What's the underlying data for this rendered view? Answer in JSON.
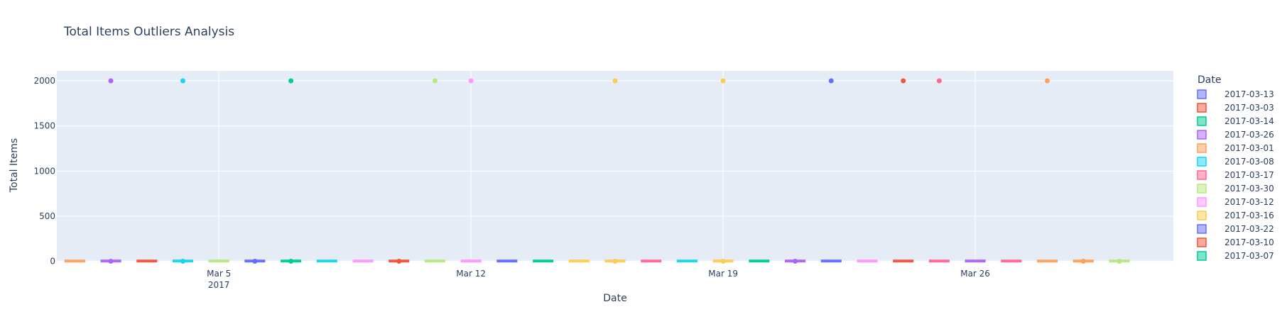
{
  "chart_data": {
    "type": "box",
    "title": "Total Items Outliers Analysis",
    "xlabel": "Date",
    "ylabel": "Total Items",
    "ylim": [
      -10,
      2110
    ],
    "yticks": [
      0,
      500,
      1000,
      1500,
      2000
    ],
    "xrange": [
      "2017-02-28T12:00",
      "2017-03-31T12:00"
    ],
    "xticks": [
      {
        "date": "2017-03-05",
        "label": "Mar 5",
        "sublabel": "2017"
      },
      {
        "date": "2017-03-12",
        "label": "Mar 12",
        "sublabel": ""
      },
      {
        "date": "2017-03-19",
        "label": "Mar 19",
        "sublabel": ""
      },
      {
        "date": "2017-03-26",
        "label": "Mar 26",
        "sublabel": ""
      }
    ],
    "legend_title": "Date",
    "legend_position": "right",
    "grid": true,
    "series": [
      {
        "name": "2017-03-13",
        "x": "2017-03-13",
        "color": "#636efa",
        "median": 4,
        "outliers": []
      },
      {
        "name": "2017-03-03",
        "x": "2017-03-03",
        "color": "#EF553B",
        "median": 4,
        "outliers": []
      },
      {
        "name": "2017-03-14",
        "x": "2017-03-14",
        "color": "#00cc96",
        "median": 4,
        "outliers": []
      },
      {
        "name": "2017-03-26",
        "x": "2017-03-26",
        "color": "#ab63fa",
        "median": 4,
        "outliers": []
      },
      {
        "name": "2017-03-01",
        "x": "2017-03-01",
        "color": "#FFA15A",
        "median": 4,
        "outliers": []
      },
      {
        "name": "2017-03-08",
        "x": "2017-03-08",
        "color": "#19d3f3",
        "median": 4,
        "outliers": []
      },
      {
        "name": "2017-03-17",
        "x": "2017-03-17",
        "color": "#FF6692",
        "median": 4,
        "outliers": []
      },
      {
        "name": "2017-03-30",
        "x": "2017-03-30",
        "color": "#B6E880",
        "median": 4,
        "outliers": [
          2
        ]
      },
      {
        "name": "2017-03-12",
        "x": "2017-03-12",
        "color": "#FF97FF",
        "median": 4,
        "outliers": [
          2000
        ]
      },
      {
        "name": "2017-03-16",
        "x": "2017-03-16",
        "color": "#FECB52",
        "median": 4,
        "outliers": [
          2000,
          2
        ]
      },
      {
        "name": "2017-03-22",
        "x": "2017-03-22",
        "color": "#636efa",
        "median": 4,
        "outliers": [
          2000
        ]
      },
      {
        "name": "2017-03-10",
        "x": "2017-03-10",
        "color": "#EF553B",
        "median": 4,
        "outliers": [
          2
        ]
      },
      {
        "name": "2017-03-07",
        "x": "2017-03-07",
        "color": "#00cc96",
        "median": 4,
        "outliers": [
          2000,
          2
        ]
      },
      {
        "name": "",
        "x": "2017-03-02",
        "color": "#ab63fa",
        "median": 4,
        "outliers": [
          2000,
          2
        ]
      },
      {
        "name": "",
        "x": "2017-03-04",
        "color": "#19d3f3",
        "median": 4,
        "outliers": [
          2000,
          2
        ]
      },
      {
        "name": "",
        "x": "2017-03-05",
        "color": "#B6E880",
        "median": 4,
        "outliers": []
      },
      {
        "name": "",
        "x": "2017-03-06",
        "color": "#636efa",
        "median": 4,
        "outliers": [
          2
        ]
      },
      {
        "name": "",
        "x": "2017-03-09",
        "color": "#FF97FF",
        "median": 4,
        "outliers": []
      },
      {
        "name": "",
        "x": "2017-03-11",
        "color": "#B6E880",
        "median": 4,
        "outliers": [
          2000
        ]
      },
      {
        "name": "",
        "x": "2017-03-15",
        "color": "#FECB52",
        "median": 4,
        "outliers": []
      },
      {
        "name": "",
        "x": "2017-03-18",
        "color": "#19d3f3",
        "median": 4,
        "outliers": []
      },
      {
        "name": "",
        "x": "2017-03-19",
        "color": "#FECB52",
        "median": 4,
        "outliers": [
          2000,
          2
        ]
      },
      {
        "name": "",
        "x": "2017-03-20",
        "color": "#00cc96",
        "median": 4,
        "outliers": []
      },
      {
        "name": "",
        "x": "2017-03-21",
        "color": "#ab63fa",
        "median": 4,
        "outliers": [
          2
        ]
      },
      {
        "name": "",
        "x": "2017-03-23",
        "color": "#FF97FF",
        "median": 4,
        "outliers": []
      },
      {
        "name": "",
        "x": "2017-03-24",
        "color": "#EF553B",
        "median": 4,
        "outliers": [
          2000
        ]
      },
      {
        "name": "",
        "x": "2017-03-25",
        "color": "#FF6692",
        "median": 4,
        "outliers": [
          2000
        ]
      },
      {
        "name": "",
        "x": "2017-03-27",
        "color": "#FF6692",
        "median": 4,
        "outliers": []
      },
      {
        "name": "",
        "x": "2017-03-28",
        "color": "#FFA15A",
        "median": 4,
        "outliers": [
          2000
        ]
      },
      {
        "name": "",
        "x": "2017-03-29",
        "color": "#FFA15A",
        "median": 4,
        "outliers": [
          2
        ]
      }
    ]
  }
}
